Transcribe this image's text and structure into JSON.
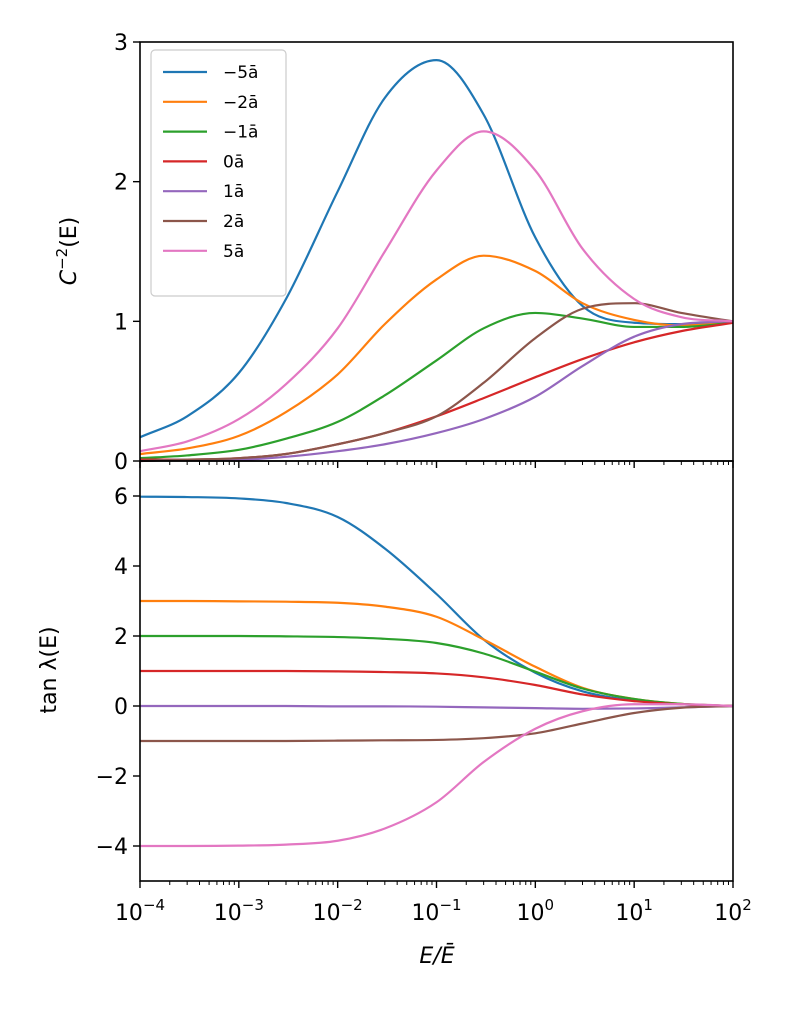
{
  "chart_data": [
    {
      "type": "line",
      "panel": "top",
      "ylabel": "C⁻²(E)",
      "ylabel_base": "C",
      "ylabel_sup": "−2",
      "ylabel_tail": "(E)",
      "xscale": "log",
      "xlim": [
        0.0001,
        100
      ],
      "ylim": [
        0,
        3
      ],
      "yticks": [
        0,
        1,
        2,
        3
      ],
      "ytick_labels": [
        "0",
        "1",
        "2",
        "3"
      ],
      "grid": false,
      "legend_position": "top-left",
      "x": [
        0.0001,
        0.0003,
        0.001,
        0.003,
        0.01,
        0.03,
        0.1,
        0.3,
        1,
        3,
        10,
        30,
        100
      ],
      "series": [
        {
          "name": "−5ā",
          "color": "#1f77b4",
          "values": [
            0.17,
            0.32,
            0.63,
            1.16,
            1.93,
            2.6,
            2.87,
            2.48,
            1.6,
            1.11,
            0.99,
            0.98,
            0.99
          ]
        },
        {
          "name": "−2ā",
          "color": "#ff7f0e",
          "values": [
            0.05,
            0.09,
            0.18,
            0.35,
            0.62,
            0.98,
            1.3,
            1.47,
            1.36,
            1.13,
            1.01,
            0.97,
            0.99
          ]
        },
        {
          "name": "−1ā",
          "color": "#2ca02c",
          "values": [
            0.02,
            0.04,
            0.08,
            0.16,
            0.28,
            0.47,
            0.72,
            0.95,
            1.06,
            1.02,
            0.96,
            0.96,
            0.99
          ]
        },
        {
          "name": "0ā",
          "color": "#d62728",
          "values": [
            0.01,
            0.01,
            0.02,
            0.05,
            0.12,
            0.2,
            0.32,
            0.45,
            0.6,
            0.73,
            0.85,
            0.93,
            0.99
          ]
        },
        {
          "name": "1ā",
          "color": "#9467bd",
          "values": [
            0.0,
            0.01,
            0.01,
            0.03,
            0.07,
            0.12,
            0.2,
            0.3,
            0.46,
            0.68,
            0.89,
            0.98,
            1.0
          ]
        },
        {
          "name": "2ā",
          "color": "#8c564b",
          "values": [
            0.0,
            0.01,
            0.02,
            0.05,
            0.12,
            0.2,
            0.32,
            0.56,
            0.88,
            1.09,
            1.13,
            1.06,
            1.0
          ]
        },
        {
          "name": "5ā",
          "color": "#e377c2",
          "values": [
            0.07,
            0.14,
            0.3,
            0.55,
            0.95,
            1.5,
            2.08,
            2.36,
            2.08,
            1.52,
            1.16,
            1.03,
            1.0
          ]
        }
      ]
    },
    {
      "type": "line",
      "panel": "bottom",
      "xlabel": "E/Ē",
      "ylabel": "tan λ(E)",
      "xscale": "log",
      "xlim": [
        0.0001,
        100
      ],
      "ylim": [
        -5,
        7
      ],
      "yticks": [
        -4,
        -2,
        0,
        2,
        4,
        6
      ],
      "ytick_labels": [
        "−4",
        "−2",
        "0",
        "2",
        "4",
        "6"
      ],
      "xticks": [
        0.0001,
        0.001,
        0.01,
        0.1,
        1,
        10,
        100
      ],
      "xtick_labels": [
        {
          "base": "10",
          "exp": "−4"
        },
        {
          "base": "10",
          "exp": "−3"
        },
        {
          "base": "10",
          "exp": "−2"
        },
        {
          "base": "10",
          "exp": "−1"
        },
        {
          "base": "10",
          "exp": "0"
        },
        {
          "base": "10",
          "exp": "1"
        },
        {
          "base": "10",
          "exp": "2"
        }
      ],
      "grid": false,
      "x": [
        0.0001,
        0.0003,
        0.001,
        0.003,
        0.01,
        0.03,
        0.1,
        0.3,
        1,
        3,
        10,
        30,
        100
      ],
      "series": [
        {
          "name": "−5ā",
          "color": "#1f77b4",
          "values": [
            5.98,
            5.97,
            5.93,
            5.8,
            5.4,
            4.5,
            3.2,
            1.9,
            0.95,
            0.42,
            0.16,
            0.05,
            0.0
          ]
        },
        {
          "name": "−2ā",
          "color": "#ff7f0e",
          "values": [
            3.0,
            3.0,
            2.99,
            2.98,
            2.95,
            2.84,
            2.55,
            1.9,
            1.12,
            0.52,
            0.2,
            0.06,
            0.0
          ]
        },
        {
          "name": "−1ā",
          "color": "#2ca02c",
          "values": [
            2.0,
            2.0,
            2.0,
            1.99,
            1.97,
            1.92,
            1.8,
            1.5,
            0.98,
            0.5,
            0.2,
            0.06,
            0.0
          ]
        },
        {
          "name": "0ā",
          "color": "#d62728",
          "values": [
            1.0,
            1.0,
            1.0,
            1.0,
            0.99,
            0.97,
            0.93,
            0.82,
            0.6,
            0.33,
            0.14,
            0.05,
            0.0
          ]
        },
        {
          "name": "1ā",
          "color": "#9467bd",
          "values": [
            0.0,
            0.0,
            0.0,
            0.0,
            -0.01,
            -0.01,
            -0.02,
            -0.04,
            -0.06,
            -0.08,
            -0.07,
            -0.04,
            0.0
          ]
        },
        {
          "name": "2ā",
          "color": "#8c564b",
          "values": [
            -1.0,
            -1.0,
            -1.0,
            -1.0,
            -0.99,
            -0.98,
            -0.97,
            -0.92,
            -0.78,
            -0.5,
            -0.2,
            -0.05,
            0.0
          ]
        },
        {
          "name": "5ā",
          "color": "#e377c2",
          "values": [
            -4.0,
            -4.0,
            -3.99,
            -3.96,
            -3.85,
            -3.5,
            -2.75,
            -1.6,
            -0.65,
            -0.15,
            0.05,
            0.05,
            0.0
          ]
        }
      ]
    }
  ]
}
